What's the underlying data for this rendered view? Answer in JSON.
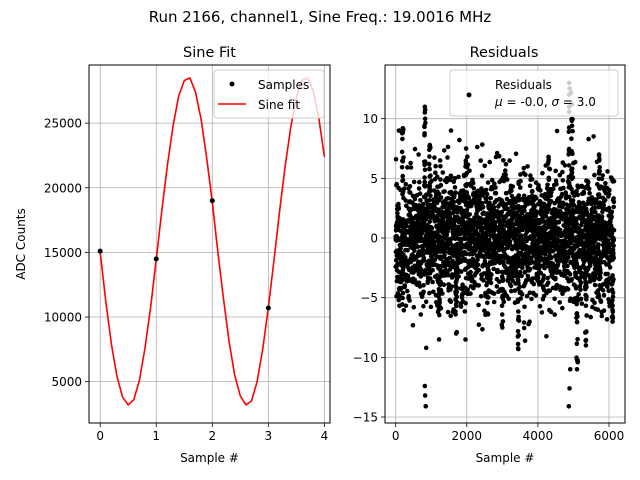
{
  "suptitle": "Run 2166, channel1, Sine Freq.: 19.0016 MHz",
  "chart_data": [
    {
      "type": "line",
      "title": "Sine Fit",
      "xlabel": "Sample #",
      "ylabel": "ADC Counts",
      "xlim": [
        -0.2,
        4.1
      ],
      "ylim": [
        1800,
        29500
      ],
      "xticks": [
        0,
        1,
        2,
        3,
        4
      ],
      "xtick_labels": [
        "0",
        "1",
        "2",
        "3",
        "4"
      ],
      "yticks": [
        5000,
        10000,
        15000,
        20000,
        25000
      ],
      "ytick_labels": [
        "5000",
        "10000",
        "15000",
        "20000",
        "25000"
      ],
      "grid": true,
      "legend_position": "top-right",
      "series": [
        {
          "name": "Samples",
          "kind": "scatter",
          "color": "#000000",
          "x": [
            0,
            1,
            2,
            3
          ],
          "y": [
            15100,
            14500,
            19000,
            10700
          ]
        },
        {
          "name": "Sine fit",
          "kind": "line",
          "color": "#ff0000",
          "x": [
            0.0,
            0.1,
            0.2,
            0.3,
            0.4,
            0.5,
            0.6,
            0.7,
            0.8,
            0.9,
            1.0,
            1.1,
            1.2,
            1.3,
            1.4,
            1.5,
            1.6,
            1.7,
            1.8,
            1.9,
            2.0,
            2.1,
            2.2,
            2.3,
            2.4,
            2.5,
            2.6,
            2.7,
            2.8,
            2.9,
            3.0,
            3.1,
            3.2,
            3.3,
            3.4,
            3.5,
            3.6,
            3.7,
            3.8,
            3.9,
            4.0
          ],
          "y": [
            15000,
            11200,
            7900,
            5400,
            3800,
            3200,
            3600,
            5100,
            7600,
            10800,
            14500,
            18300,
            21800,
            24800,
            27100,
            28300,
            28500,
            27400,
            25300,
            22300,
            18900,
            15000,
            11400,
            8100,
            5500,
            3900,
            3200,
            3500,
            5000,
            7500,
            10700,
            14400,
            18200,
            21700,
            24700,
            27000,
            28300,
            28500,
            27500,
            25400,
            22400
          ]
        }
      ]
    },
    {
      "type": "scatter",
      "title": "Residuals",
      "xlabel": "Sample #",
      "ylabel": "",
      "xlim": [
        -300,
        6450
      ],
      "ylim": [
        -15.5,
        14.5
      ],
      "xticks": [
        0,
        2000,
        4000,
        6000
      ],
      "xtick_labels": [
        "0",
        "2000",
        "4000",
        "6000"
      ],
      "yticks": [
        -15,
        -10,
        -5,
        0,
        5,
        10
      ],
      "ytick_labels": [
        "−15",
        "−10",
        "−5",
        "0",
        "5",
        "10"
      ],
      "grid": true,
      "legend_position": "top-right",
      "n_points": 6144,
      "sigma": 3.0,
      "mean": -0.0,
      "spike_x": [
        200,
        820,
        960,
        1220,
        1700,
        1980,
        2600,
        3000,
        3450,
        4300,
        4880,
        4960,
        5100,
        5350,
        5720,
        6100
      ],
      "spike_y": [
        9.2,
        11.0,
        7.8,
        -8.5,
        -8.0,
        7.5,
        -6.4,
        -7.5,
        -9.3,
        6.8,
        13.0,
        11.2,
        -11.0,
        -9.0,
        7.0,
        -7.0
      ],
      "outliers_x": [
        820,
        830,
        845,
        860,
        4870,
        4890,
        4910,
        4935
      ],
      "outliers_y": [
        -12.4,
        -13.2,
        -14.1,
        -9.2,
        -14.1,
        -12.6,
        -11.0,
        12.2
      ],
      "series": [
        {
          "name": "Residuals",
          "color": "#000000"
        }
      ],
      "legend_stats": "μ = -0.0, σ = 3.0"
    }
  ]
}
